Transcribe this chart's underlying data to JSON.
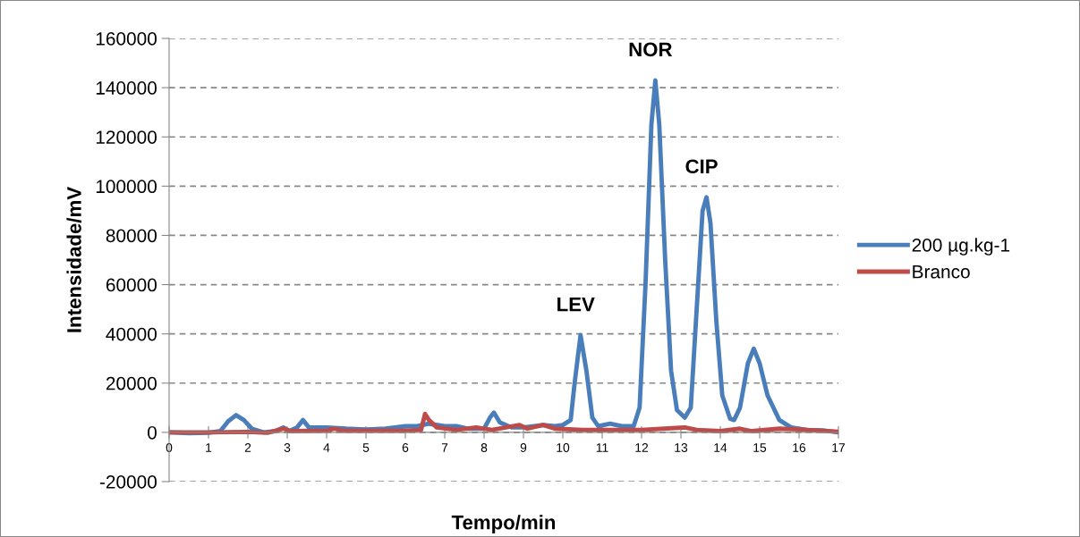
{
  "chart_data": {
    "type": "line",
    "xlabel": "Tempo/min",
    "ylabel": "Intensidade/mV",
    "xlim": [
      0,
      17
    ],
    "xticks": [
      0,
      1,
      2,
      3,
      4,
      5,
      6,
      7,
      8,
      9,
      10,
      11,
      12,
      13,
      14,
      15,
      16,
      17
    ],
    "ylim": [
      -20000,
      160000
    ],
    "yticks": [
      -20000,
      0,
      20000,
      40000,
      60000,
      80000,
      100000,
      120000,
      140000,
      160000
    ],
    "grid": "y",
    "legend": "right",
    "marker": "none",
    "line_style": "solid",
    "annotations": [
      {
        "text": "LEV",
        "x": 10.45,
        "y": 39500
      },
      {
        "text": "NOR",
        "x": 12.35,
        "y": 143000
      },
      {
        "text": "CIP",
        "x": 13.65,
        "y": 95500
      }
    ],
    "series": [
      {
        "name": "200 µg.kg-1",
        "color": "#4a7ebb",
        "x": [
          0,
          0.5,
          1.0,
          1.3,
          1.5,
          1.7,
          1.9,
          2.1,
          2.4,
          2.7,
          2.9,
          3.05,
          3.25,
          3.4,
          3.55,
          4.0,
          4.5,
          5.0,
          5.5,
          6.0,
          6.3,
          6.6,
          7.0,
          7.3,
          7.6,
          8.0,
          8.15,
          8.25,
          8.4,
          8.7,
          9.0,
          9.5,
          9.8,
          10.0,
          10.2,
          10.3,
          10.45,
          10.6,
          10.75,
          10.9,
          11.2,
          11.5,
          11.8,
          11.95,
          12.1,
          12.25,
          12.35,
          12.45,
          12.6,
          12.75,
          12.9,
          13.1,
          13.25,
          13.4,
          13.55,
          13.65,
          13.75,
          13.9,
          14.05,
          14.25,
          14.35,
          14.5,
          14.7,
          14.85,
          15.0,
          15.2,
          15.5,
          15.8,
          16.2,
          16.6,
          17
        ],
        "values": [
          0,
          -300,
          -200,
          500,
          4500,
          7000,
          5000,
          1500,
          0,
          500,
          2000,
          500,
          2000,
          5000,
          2000,
          2000,
          1500,
          1200,
          1500,
          2500,
          2500,
          3500,
          2500,
          2500,
          1500,
          1500,
          6000,
          8000,
          4000,
          2000,
          2000,
          3000,
          2500,
          3000,
          5000,
          20000,
          39500,
          25000,
          6000,
          2500,
          3500,
          2500,
          2500,
          10000,
          60000,
          125000,
          143000,
          125000,
          70000,
          25000,
          9000,
          6000,
          10000,
          50000,
          90000,
          95500,
          85000,
          45000,
          15000,
          5500,
          5000,
          10000,
          28000,
          34000,
          28000,
          15000,
          5000,
          2000,
          1000,
          800,
          0
        ]
      },
      {
        "name": "Branco",
        "color": "#be4b48",
        "x": [
          0,
          1,
          2,
          2.5,
          2.9,
          3.1,
          4,
          4.2,
          4.4,
          5,
          6,
          6.4,
          6.5,
          6.6,
          6.8,
          7.3,
          7.8,
          8.2,
          8.9,
          9.1,
          9.5,
          9.8,
          10.5,
          12,
          13.1,
          13.4,
          14,
          14.5,
          14.8,
          15.5,
          16,
          17
        ],
        "values": [
          0,
          0,
          200,
          -200,
          1500,
          500,
          700,
          1500,
          700,
          700,
          700,
          1000,
          7500,
          5000,
          2000,
          1000,
          2000,
          1000,
          3000,
          1500,
          3000,
          1500,
          1000,
          1000,
          2000,
          1000,
          500,
          1500,
          500,
          1500,
          1200,
          300
        ]
      }
    ]
  }
}
